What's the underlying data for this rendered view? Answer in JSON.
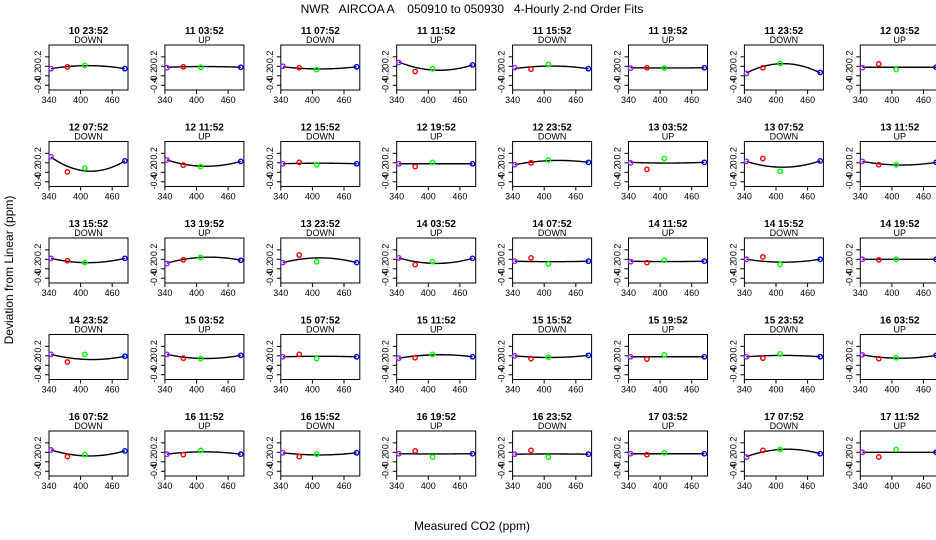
{
  "chart_data": {
    "type": "scatter",
    "title": "NWR   AIRCOA A    050910 to 050930   4-Hourly 2-nd Order Fits",
    "xlabel": "Measured CO2 (ppm)",
    "ylabel": "Deviation from Linear (ppm)",
    "xlim": [
      340,
      490
    ],
    "ylim": [
      -0.5,
      0.45
    ],
    "x_ticks": [
      340,
      400,
      460
    ],
    "y_ticks": [
      -0.4,
      -0.2,
      0.0,
      0.2
    ],
    "y_tick_labels": [
      "-0.4",
      "-0.2",
      "0",
      "0.2"
    ],
    "x_tick_labels": [
      "340",
      "400",
      "460"
    ],
    "grid": false,
    "layout": {
      "rows": 5,
      "cols": 8
    },
    "point_x": [
      344,
      375,
      408,
      484
    ],
    "point_colors": [
      "#a020f0",
      "#ff0000",
      "#00ff00",
      "#0000ff"
    ],
    "panels": [
      {
        "title": "10 23:52",
        "mode": "DOWN",
        "curve": [
          -0.05,
          -0.006,
          0.014,
          -0.05
        ],
        "points": [
          -0.05,
          -0.01,
          0.02,
          -0.05
        ]
      },
      {
        "title": "11 03:52",
        "mode": "UP",
        "curve": [
          -0.02,
          -0.008,
          -0.005,
          -0.02
        ],
        "points": [
          -0.03,
          -0.01,
          -0.02,
          -0.02
        ]
      },
      {
        "title": "11 07:52",
        "mode": "DOWN",
        "curve": [
          -0.01,
          -0.045,
          -0.055,
          -0.01
        ],
        "points": [
          0.0,
          -0.03,
          -0.07,
          -0.01
        ]
      },
      {
        "title": "11 11:52",
        "mode": "UP",
        "curve": [
          0.09,
          -0.045,
          -0.078,
          0.03
        ],
        "points": [
          0.08,
          -0.11,
          -0.05,
          0.03
        ]
      },
      {
        "title": "11 15:52",
        "mode": "DOWN",
        "curve": [
          -0.05,
          -0.012,
          0.005,
          -0.05
        ],
        "points": [
          -0.03,
          -0.06,
          0.04,
          -0.05
        ]
      },
      {
        "title": "11 19:52",
        "mode": "UP",
        "curve": [
          -0.03,
          -0.032,
          -0.035,
          -0.03
        ],
        "points": [
          -0.04,
          -0.03,
          -0.04,
          -0.03
        ]
      },
      {
        "title": "11 23:52",
        "mode": "DOWN",
        "curve": [
          -0.14,
          -0.005,
          0.055,
          -0.14
        ],
        "points": [
          -0.15,
          -0.03,
          0.06,
          -0.13
        ]
      },
      {
        "title": "12 03:52",
        "mode": "UP",
        "curve": [
          -0.02,
          -0.02,
          -0.02,
          -0.02
        ],
        "points": [
          -0.03,
          0.05,
          -0.07,
          -0.02
        ]
      },
      {
        "title": "12 07:52",
        "mode": "DOWN",
        "curve": [
          0.12,
          -0.12,
          -0.17,
          0.04
        ],
        "points": [
          0.13,
          -0.19,
          -0.11,
          0.04
        ]
      },
      {
        "title": "12 11:52",
        "mode": "UP",
        "curve": [
          0.06,
          -0.045,
          -0.07,
          0.03
        ],
        "points": [
          0.06,
          -0.05,
          -0.08,
          0.03
        ]
      },
      {
        "title": "12 15:52",
        "mode": "DOWN",
        "curve": [
          -0.02,
          -0.008,
          -0.008,
          -0.02
        ],
        "points": [
          -0.02,
          0.01,
          -0.04,
          -0.02
        ]
      },
      {
        "title": "12 19:52",
        "mode": "UP",
        "curve": [
          -0.02,
          -0.02,
          -0.02,
          -0.02
        ],
        "points": [
          -0.02,
          -0.08,
          0.01,
          -0.02
        ]
      },
      {
        "title": "12 23:52",
        "mode": "DOWN",
        "curve": [
          -0.04,
          0.016,
          0.045,
          0.01
        ],
        "points": [
          -0.04,
          0.0,
          0.06,
          0.01
        ]
      },
      {
        "title": "13 03:52",
        "mode": "UP",
        "curve": [
          0.01,
          -0.005,
          -0.005,
          0.01
        ],
        "points": [
          0.0,
          -0.14,
          0.09,
          0.01
        ]
      },
      {
        "title": "13 07:52",
        "mode": "DOWN",
        "curve": [
          0.03,
          -0.068,
          -0.092,
          0.04
        ],
        "points": [
          0.03,
          0.09,
          -0.18,
          0.04
        ]
      },
      {
        "title": "13 11:52",
        "mode": "UP",
        "curve": [
          0.03,
          -0.025,
          -0.045,
          0.01
        ],
        "points": [
          0.03,
          -0.04,
          -0.04,
          0.01
        ]
      },
      {
        "title": "13 15:52",
        "mode": "DOWN",
        "curve": [
          0.02,
          -0.05,
          -0.07,
          0.02
        ],
        "points": [
          0.02,
          -0.03,
          -0.07,
          0.02
        ]
      },
      {
        "title": "13 19:52",
        "mode": "UP",
        "curve": [
          -0.08,
          0.0,
          0.04,
          -0.02
        ],
        "points": [
          -0.09,
          -0.01,
          0.04,
          -0.02
        ]
      },
      {
        "title": "13 23:52",
        "mode": "DOWN",
        "curve": [
          -0.07,
          -0.005,
          0.03,
          -0.07
        ],
        "points": [
          -0.07,
          0.09,
          -0.05,
          -0.07
        ]
      },
      {
        "title": "14 03:52",
        "mode": "UP",
        "curve": [
          0.03,
          -0.065,
          -0.085,
          0.02
        ],
        "points": [
          0.03,
          -0.11,
          -0.05,
          0.02
        ]
      },
      {
        "title": "14 07:52",
        "mode": "DOWN",
        "curve": [
          -0.04,
          -0.034,
          -0.05,
          -0.04
        ],
        "points": [
          -0.04,
          0.03,
          -0.1,
          -0.04
        ]
      },
      {
        "title": "14 11:52",
        "mode": "UP",
        "curve": [
          -0.04,
          -0.045,
          -0.048,
          -0.04
        ],
        "points": [
          -0.05,
          -0.07,
          -0.02,
          -0.04
        ]
      },
      {
        "title": "14 15:52",
        "mode": "DOWN",
        "curve": [
          0.0,
          -0.048,
          -0.06,
          0.0
        ],
        "points": [
          0.0,
          0.05,
          -0.11,
          0.0
        ]
      },
      {
        "title": "14 19:52",
        "mode": "UP",
        "curve": [
          0.0,
          0.0,
          0.0,
          0.0
        ],
        "points": [
          0.0,
          -0.01,
          0.0,
          0.0
        ]
      },
      {
        "title": "14 23:52",
        "mode": "DOWN",
        "curve": [
          0.03,
          -0.055,
          -0.075,
          -0.01
        ],
        "points": [
          0.03,
          -0.13,
          0.03,
          -0.01
        ]
      },
      {
        "title": "15 03:52",
        "mode": "UP",
        "curve": [
          0.03,
          -0.035,
          -0.055,
          0.01
        ],
        "points": [
          0.03,
          -0.05,
          -0.06,
          0.01
        ]
      },
      {
        "title": "15 07:52",
        "mode": "DOWN",
        "curve": [
          -0.02,
          -0.012,
          -0.01,
          -0.02
        ],
        "points": [
          -0.02,
          0.03,
          -0.06,
          -0.02
        ]
      },
      {
        "title": "15 11:52",
        "mode": "UP",
        "curve": [
          -0.05,
          -0.005,
          0.02,
          -0.02
        ],
        "points": [
          -0.05,
          -0.04,
          0.03,
          -0.02
        ]
      },
      {
        "title": "15 15:52",
        "mode": "DOWN",
        "curve": [
          0.0,
          -0.025,
          -0.035,
          0.01
        ],
        "points": [
          0.0,
          -0.06,
          -0.03,
          0.01
        ]
      },
      {
        "title": "15 19:52",
        "mode": "UP",
        "curve": [
          -0.02,
          -0.02,
          -0.02,
          -0.02
        ],
        "points": [
          -0.02,
          -0.07,
          0.02,
          -0.02
        ]
      },
      {
        "title": "15 23:52",
        "mode": "DOWN",
        "curve": [
          -0.02,
          -0.004,
          0.008,
          -0.02
        ],
        "points": [
          -0.02,
          -0.05,
          0.04,
          -0.02
        ]
      },
      {
        "title": "16 03:52",
        "mode": "UP",
        "curve": [
          0.02,
          -0.035,
          -0.05,
          0.01
        ],
        "points": [
          0.02,
          -0.06,
          -0.04,
          0.01
        ]
      },
      {
        "title": "16 07:52",
        "mode": "DOWN",
        "curve": [
          0.05,
          -0.055,
          -0.075,
          0.03
        ],
        "points": [
          0.05,
          -0.09,
          -0.05,
          0.03
        ]
      },
      {
        "title": "16 11:52",
        "mode": "UP",
        "curve": [
          -0.04,
          -0.01,
          0.01,
          -0.04
        ],
        "points": [
          -0.04,
          -0.05,
          0.04,
          -0.04
        ]
      },
      {
        "title": "16 15:52",
        "mode": "DOWN",
        "curve": [
          -0.01,
          -0.045,
          -0.055,
          -0.01
        ],
        "points": [
          -0.01,
          -0.09,
          -0.04,
          -0.01
        ]
      },
      {
        "title": "16 19:52",
        "mode": "UP",
        "curve": [
          -0.03,
          -0.032,
          -0.034,
          -0.03
        ],
        "points": [
          -0.03,
          0.03,
          -0.1,
          -0.03
        ]
      },
      {
        "title": "16 23:52",
        "mode": "DOWN",
        "curve": [
          -0.04,
          -0.032,
          -0.035,
          -0.04
        ],
        "points": [
          -0.04,
          0.04,
          -0.1,
          -0.04
        ]
      },
      {
        "title": "17 03:52",
        "mode": "UP",
        "curve": [
          -0.03,
          -0.03,
          -0.03,
          -0.03
        ],
        "points": [
          -0.03,
          -0.05,
          -0.01,
          -0.03
        ]
      },
      {
        "title": "17 07:52",
        "mode": "DOWN",
        "curve": [
          -0.09,
          0.025,
          0.06,
          -0.03
        ],
        "points": [
          -0.1,
          0.04,
          0.06,
          -0.03
        ]
      },
      {
        "title": "17 11:52",
        "mode": "UP",
        "curve": [
          0.0,
          0.0,
          0.0,
          0.0
        ],
        "points": [
          0.0,
          -0.1,
          0.06,
          0.0
        ]
      }
    ]
  }
}
